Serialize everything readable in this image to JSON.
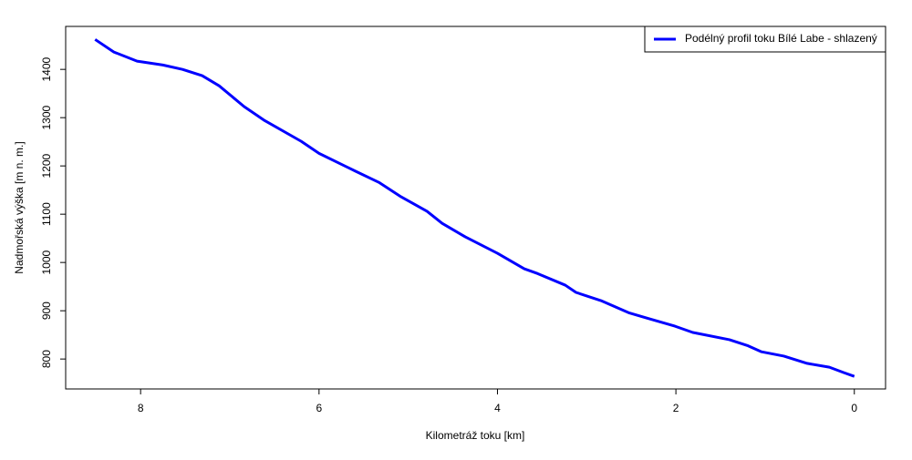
{
  "chart_data": {
    "type": "line",
    "x_label": "Kilometráž toku [km]",
    "y_label": "Nadmořská výška [m n. m.]",
    "x": [
      8.51,
      8.3,
      8.04,
      7.75,
      7.53,
      7.31,
      7.12,
      6.84,
      6.61,
      6.2,
      6.0,
      5.59,
      5.33,
      5.08,
      4.79,
      4.62,
      4.36,
      4.0,
      3.7,
      3.55,
      3.24,
      3.12,
      2.84,
      2.53,
      2.33,
      2.01,
      1.81,
      1.4,
      1.2,
      1.04,
      0.79,
      0.53,
      0.28,
      0.12,
      0
    ],
    "series": [
      {
        "name": "Podélný profil toku Bílé Labe - shlazený",
        "color": "#0000ff",
        "values": [
          1462,
          1436,
          1417,
          1409,
          1400,
          1387,
          1366,
          1323,
          1294,
          1251,
          1226,
          1189,
          1166,
          1136,
          1106,
          1081,
          1053,
          1019,
          987,
          977,
          953,
          938,
          921,
          896,
          885,
          868,
          855,
          840,
          828,
          815,
          806,
          791,
          783,
          772,
          764
        ]
      }
    ],
    "xlim": [
      8.84,
      -0.35
    ],
    "xticks": [
      8,
      6,
      4,
      2,
      0
    ],
    "ylim": [
      738,
      1489
    ],
    "yticks": [
      800,
      900,
      1000,
      1100,
      1200,
      1300,
      1400
    ],
    "legend": "top-right"
  }
}
